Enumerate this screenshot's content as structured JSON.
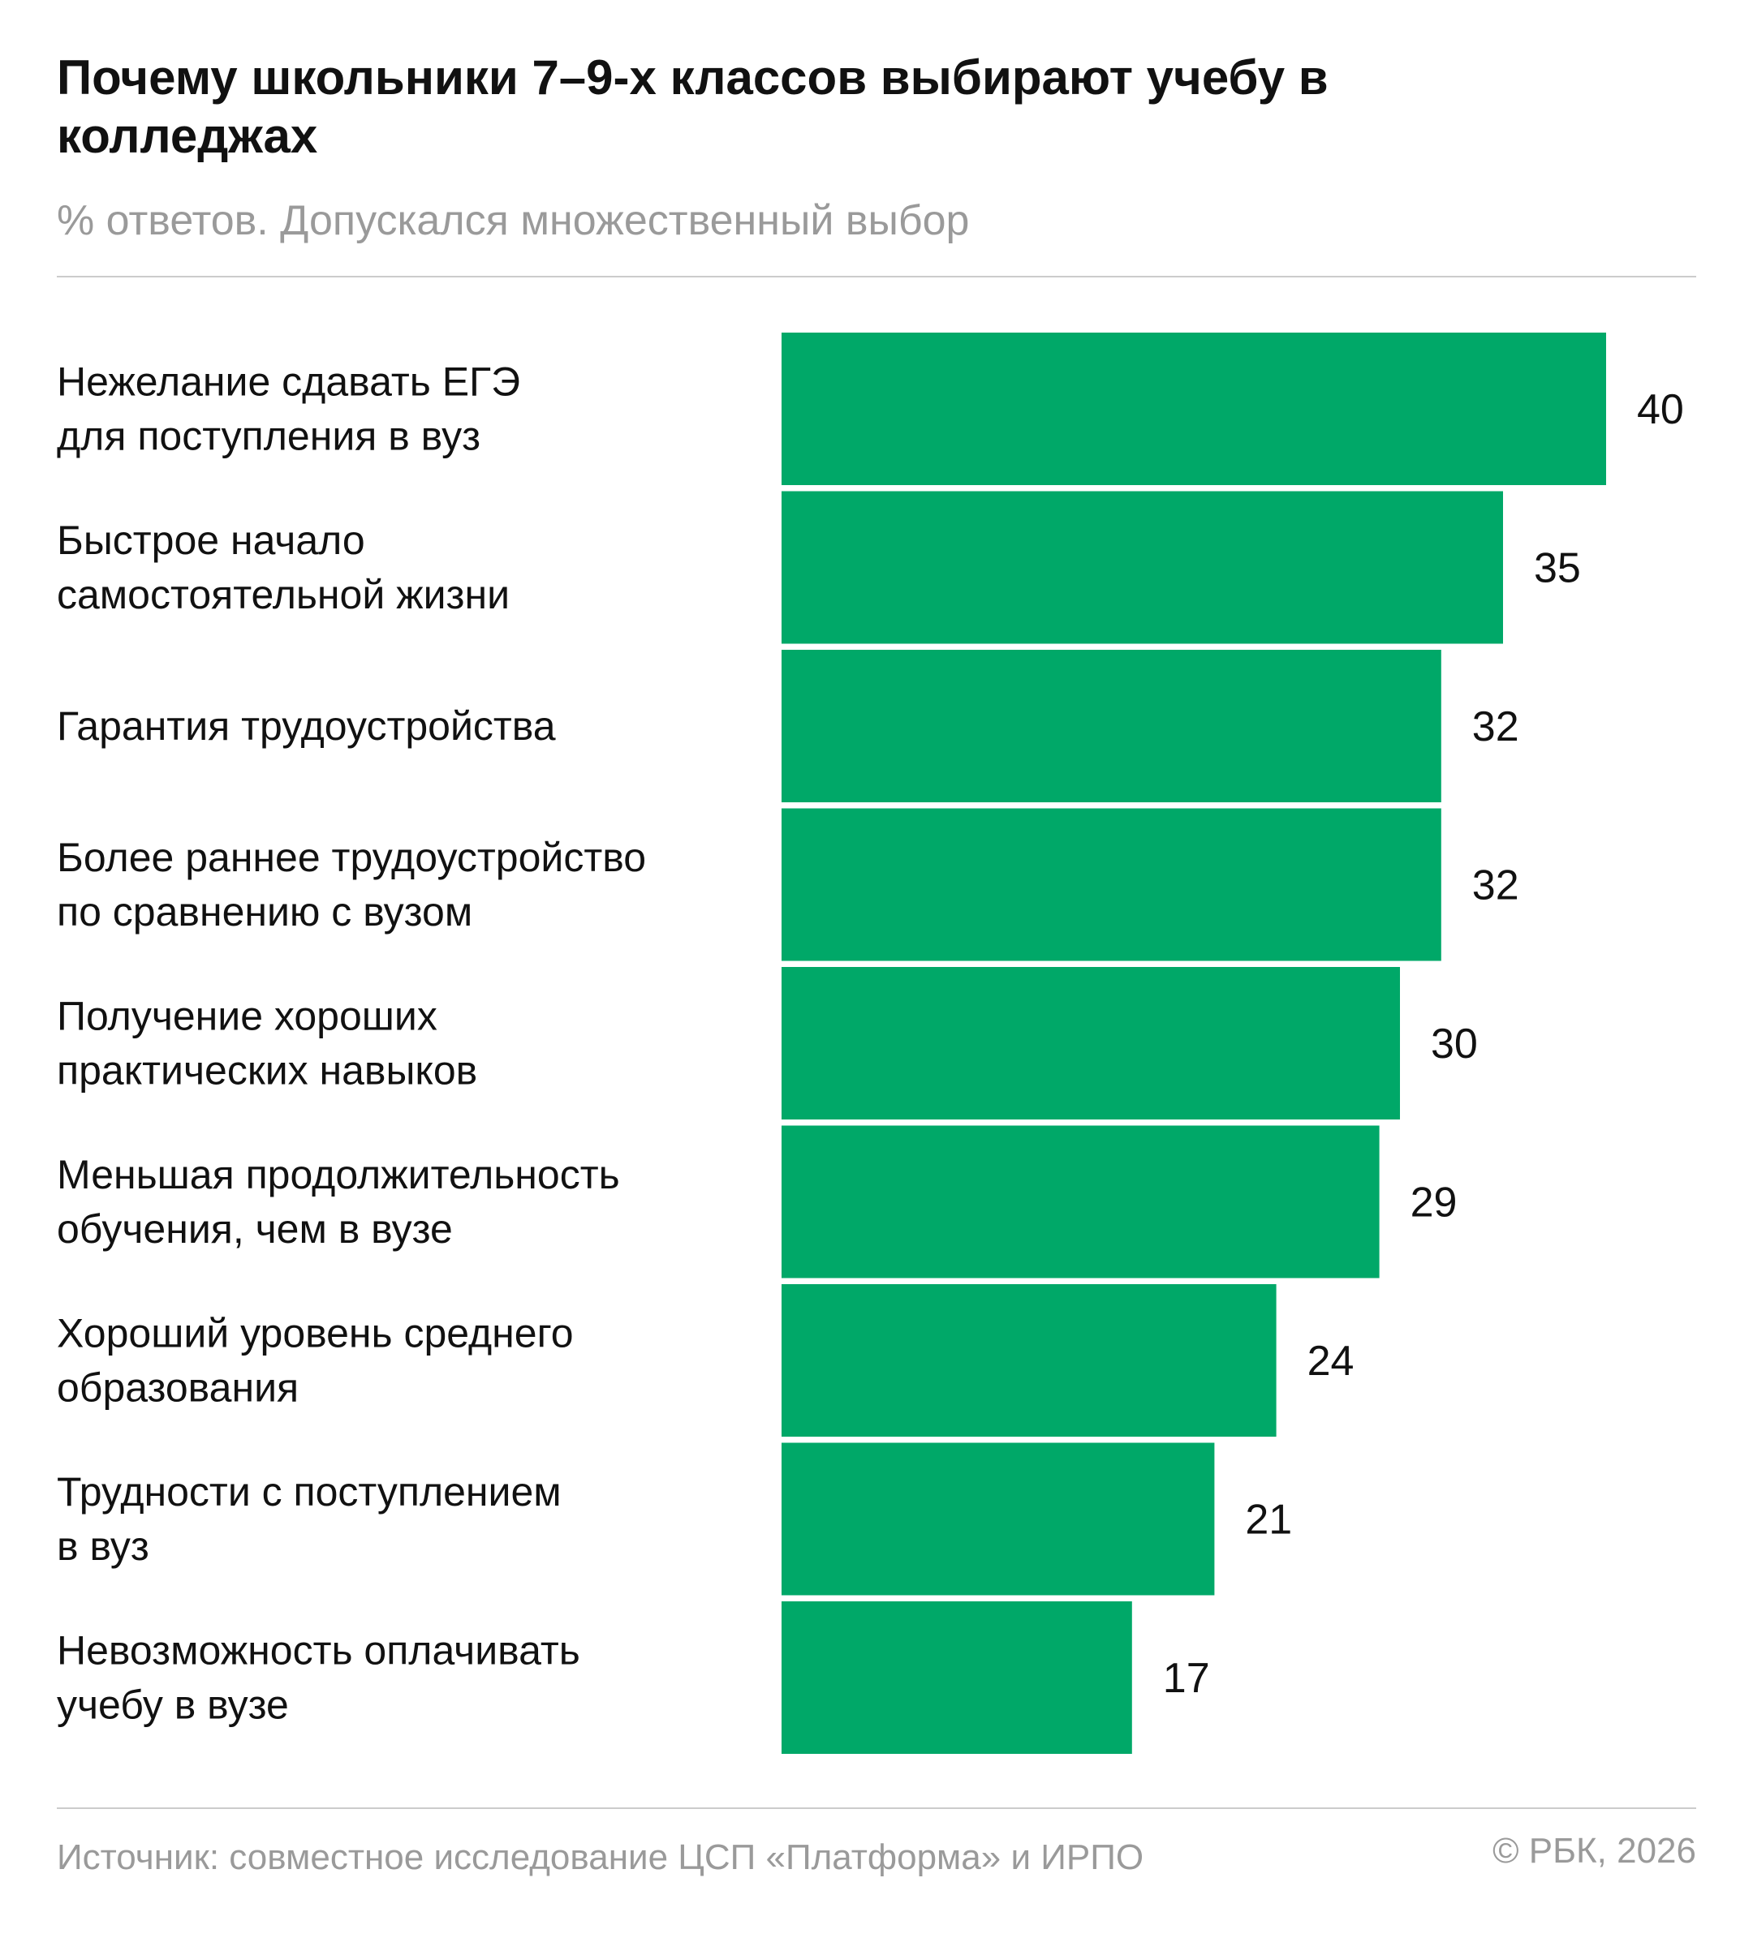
{
  "header": {
    "title": "Почему школьники 7–9-х классов выбирают учебу в колледжах",
    "subtitle": "% ответов. Допускался множественный выбор"
  },
  "footer": {
    "source": "Источник: совместное исследование ЦСП «Платформа» и ИРПО",
    "copyright": "© РБК, 2026"
  },
  "colors": {
    "bar": "#00a868",
    "text": "#111111",
    "muted": "#9a9a9a"
  },
  "chart_data": {
    "type": "bar",
    "orientation": "horizontal",
    "title": "Почему школьники 7–9-х классов выбирают учебу в колледжах",
    "subtitle": "% ответов. Допускался множественный выбор",
    "xlabel": "",
    "ylabel": "",
    "xlim": [
      0,
      40
    ],
    "grid": false,
    "legend": "none",
    "categories": [
      [
        "Нежелание сдавать ЕГЭ",
        "для поступления в вуз"
      ],
      [
        "Быстрое начало",
        "самостоятельной жизни"
      ],
      [
        "Гарантия трудоустройства"
      ],
      [
        "Более раннее трудоустройство",
        "по сравнению с вузом"
      ],
      [
        "Получение хороших",
        "практических навыков"
      ],
      [
        "Меньшая продолжительность",
        "обучения, чем в вузе"
      ],
      [
        "Хороший уровень среднего",
        "образования"
      ],
      [
        "Трудности с поступлением",
        "в вуз"
      ],
      [
        "Невозможность оплачивать",
        "учебу в вузе"
      ]
    ],
    "values": [
      40,
      35,
      32,
      32,
      30,
      29,
      24,
      21,
      17
    ],
    "data_labels": [
      "40",
      "35",
      "32",
      "32",
      "30",
      "29",
      "24",
      "21",
      "17"
    ]
  }
}
